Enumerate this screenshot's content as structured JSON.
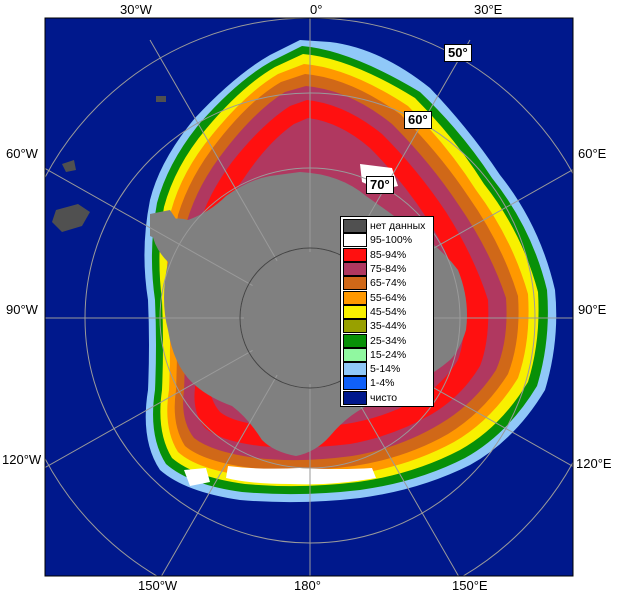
{
  "map": {
    "colors": {
      "ocean": "#00188c",
      "land": "#808080",
      "no_data": "#505050"
    },
    "lon_labels": {
      "top_left": "30°W",
      "top_center": "0°",
      "top_right": "30°E",
      "left_upper": "60°W",
      "left_mid": "90°W",
      "left_lower": "120°W",
      "right_upper": "60°E",
      "right_mid": "90°E",
      "right_lower": "120°E",
      "bottom_left": "150°W",
      "bottom_center": "180°",
      "bottom_right": "150°E"
    },
    "lat_labels": {
      "l50": "50°",
      "l60": "60°",
      "l70": "70°"
    }
  },
  "legend": {
    "items": [
      {
        "label": "нет данных",
        "color": "#505050"
      },
      {
        "label": "95-100%",
        "color": "#ffffff"
      },
      {
        "label": "85-94%",
        "color": "#ff1010"
      },
      {
        "label": "75-84%",
        "color": "#b03860"
      },
      {
        "label": "65-74%",
        "color": "#d06818"
      },
      {
        "label": "55-64%",
        "color": "#ff9800"
      },
      {
        "label": "45-54%",
        "color": "#f8f000"
      },
      {
        "label": "35-44%",
        "color": "#98a000"
      },
      {
        "label": "25-34%",
        "color": "#089008"
      },
      {
        "label": "15-24%",
        "color": "#90f8a0"
      },
      {
        "label": "5-14%",
        "color": "#90c8f8"
      },
      {
        "label": "1-4%",
        "color": "#1060f8"
      },
      {
        "label": "чисто",
        "color": "#00188c"
      }
    ]
  }
}
